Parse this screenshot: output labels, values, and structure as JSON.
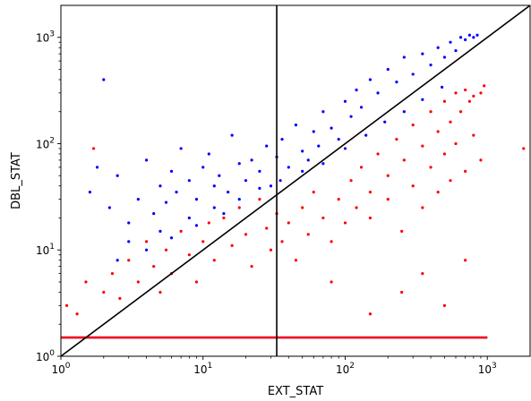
{
  "chart_data": {
    "type": "scatter",
    "title": "",
    "xlabel": "EXT_STAT",
    "ylabel": "DBL_STAT",
    "xscale": "log",
    "yscale": "log",
    "xlim": [
      1,
      2000
    ],
    "ylim": [
      1,
      2000
    ],
    "grid": false,
    "legend": "none",
    "x_ticks": [
      {
        "value": 1,
        "base": "10",
        "exp": "0"
      },
      {
        "value": 10,
        "base": "10",
        "exp": "1"
      },
      {
        "value": 100,
        "base": "10",
        "exp": "2"
      },
      {
        "value": 1000,
        "base": "10",
        "exp": "3"
      }
    ],
    "y_ticks": [
      {
        "value": 1,
        "base": "10",
        "exp": "0"
      },
      {
        "value": 10,
        "base": "10",
        "exp": "1"
      },
      {
        "value": 100,
        "base": "10",
        "exp": "2"
      },
      {
        "value": 1000,
        "base": "10",
        "exp": "3"
      }
    ],
    "series": [
      {
        "color": "#0000ff",
        "marker_size": 1.6,
        "note_baseline": "dense horizontal band at y≈1.5 spanning x≈1–1000",
        "points": [
          [
            1.6,
            35
          ],
          [
            1.8,
            60
          ],
          [
            2.0,
            400
          ],
          [
            2.2,
            25
          ],
          [
            2.5,
            50
          ],
          [
            3.0,
            18
          ],
          [
            3.5,
            30
          ],
          [
            4.0,
            70
          ],
          [
            4.5,
            22
          ],
          [
            5.0,
            40
          ],
          [
            5.5,
            28
          ],
          [
            6.0,
            55
          ],
          [
            6.5,
            35
          ],
          [
            7.0,
            90
          ],
          [
            8.0,
            45
          ],
          [
            9.0,
            30
          ],
          [
            10,
            60
          ],
          [
            11,
            80
          ],
          [
            12,
            40
          ],
          [
            13,
            50
          ],
          [
            15,
            35
          ],
          [
            16,
            120
          ],
          [
            18,
            65
          ],
          [
            20,
            45
          ],
          [
            22,
            70
          ],
          [
            25,
            55
          ],
          [
            28,
            95
          ],
          [
            30,
            40
          ],
          [
            33,
            75
          ],
          [
            36,
            110
          ],
          [
            40,
            60
          ],
          [
            45,
            150
          ],
          [
            50,
            85
          ],
          [
            55,
            70
          ],
          [
            60,
            130
          ],
          [
            65,
            95
          ],
          [
            70,
            200
          ],
          [
            80,
            140
          ],
          [
            90,
            110
          ],
          [
            100,
            250
          ],
          [
            110,
            180
          ],
          [
            120,
            320
          ],
          [
            130,
            220
          ],
          [
            150,
            400
          ],
          [
            170,
            300
          ],
          [
            200,
            500
          ],
          [
            230,
            380
          ],
          [
            260,
            650
          ],
          [
            300,
            450
          ],
          [
            350,
            700
          ],
          [
            400,
            550
          ],
          [
            450,
            800
          ],
          [
            500,
            650
          ],
          [
            550,
            900
          ],
          [
            600,
            750
          ],
          [
            650,
            1000
          ],
          [
            700,
            950
          ],
          [
            750,
            1050
          ],
          [
            800,
            1000
          ],
          [
            850,
            1050
          ],
          [
            3,
            12
          ],
          [
            5,
            15
          ],
          [
            8,
            20
          ],
          [
            12,
            25
          ],
          [
            18,
            30
          ],
          [
            25,
            38
          ],
          [
            35,
            45
          ],
          [
            50,
            55
          ],
          [
            70,
            65
          ],
          [
            100,
            90
          ],
          [
            140,
            120
          ],
          [
            190,
            160
          ],
          [
            260,
            200
          ],
          [
            350,
            260
          ],
          [
            480,
            340
          ],
          [
            2.5,
            8
          ],
          [
            4,
            10
          ],
          [
            6,
            13
          ],
          [
            9,
            17
          ],
          [
            14,
            22
          ]
        ]
      },
      {
        "color": "#ff0000",
        "marker_size": 1.6,
        "note_baseline": "dense horizontal band at y≈1.5 spanning x≈1–1000",
        "points": [
          [
            1.1,
            3
          ],
          [
            1.3,
            2.5
          ],
          [
            1.5,
            5
          ],
          [
            1.7,
            90
          ],
          [
            2.0,
            4
          ],
          [
            2.3,
            6
          ],
          [
            2.6,
            3.5
          ],
          [
            3.0,
            8
          ],
          [
            3.5,
            5
          ],
          [
            4.0,
            12
          ],
          [
            4.5,
            7
          ],
          [
            5.0,
            4
          ],
          [
            5.5,
            10
          ],
          [
            6.0,
            6
          ],
          [
            7.0,
            15
          ],
          [
            8.0,
            9
          ],
          [
            9.0,
            5
          ],
          [
            10,
            12
          ],
          [
            11,
            18
          ],
          [
            12,
            8
          ],
          [
            14,
            20
          ],
          [
            16,
            11
          ],
          [
            18,
            25
          ],
          [
            20,
            14
          ],
          [
            22,
            7
          ],
          [
            25,
            30
          ],
          [
            28,
            16
          ],
          [
            30,
            10
          ],
          [
            33,
            22
          ],
          [
            36,
            12
          ],
          [
            40,
            18
          ],
          [
            45,
            8
          ],
          [
            50,
            25
          ],
          [
            55,
            14
          ],
          [
            60,
            35
          ],
          [
            70,
            20
          ],
          [
            80,
            12
          ],
          [
            90,
            30
          ],
          [
            100,
            18
          ],
          [
            110,
            45
          ],
          [
            120,
            25
          ],
          [
            130,
            60
          ],
          [
            150,
            35
          ],
          [
            170,
            80
          ],
          [
            200,
            50
          ],
          [
            230,
            110
          ],
          [
            260,
            70
          ],
          [
            300,
            150
          ],
          [
            350,
            95
          ],
          [
            400,
            200
          ],
          [
            450,
            130
          ],
          [
            500,
            250
          ],
          [
            550,
            160
          ],
          [
            600,
            300
          ],
          [
            650,
            200
          ],
          [
            700,
            320
          ],
          [
            750,
            250
          ],
          [
            800,
            280
          ],
          [
            900,
            300
          ],
          [
            950,
            350
          ],
          [
            150,
            20
          ],
          [
            200,
            30
          ],
          [
            250,
            15
          ],
          [
            300,
            40
          ],
          [
            350,
            25
          ],
          [
            400,
            60
          ],
          [
            450,
            35
          ],
          [
            500,
            80
          ],
          [
            550,
            45
          ],
          [
            600,
            100
          ],
          [
            700,
            55
          ],
          [
            800,
            120
          ],
          [
            900,
            70
          ],
          [
            1800,
            90
          ],
          [
            250,
            4
          ],
          [
            350,
            6
          ],
          [
            500,
            3
          ],
          [
            700,
            8
          ],
          [
            150,
            2.5
          ],
          [
            80,
            5
          ]
        ]
      }
    ],
    "reference_lines": [
      {
        "kind": "diagonal",
        "label": "y = x",
        "color": "#000000"
      },
      {
        "kind": "vertical",
        "x": 33,
        "color": "#000000"
      }
    ]
  }
}
